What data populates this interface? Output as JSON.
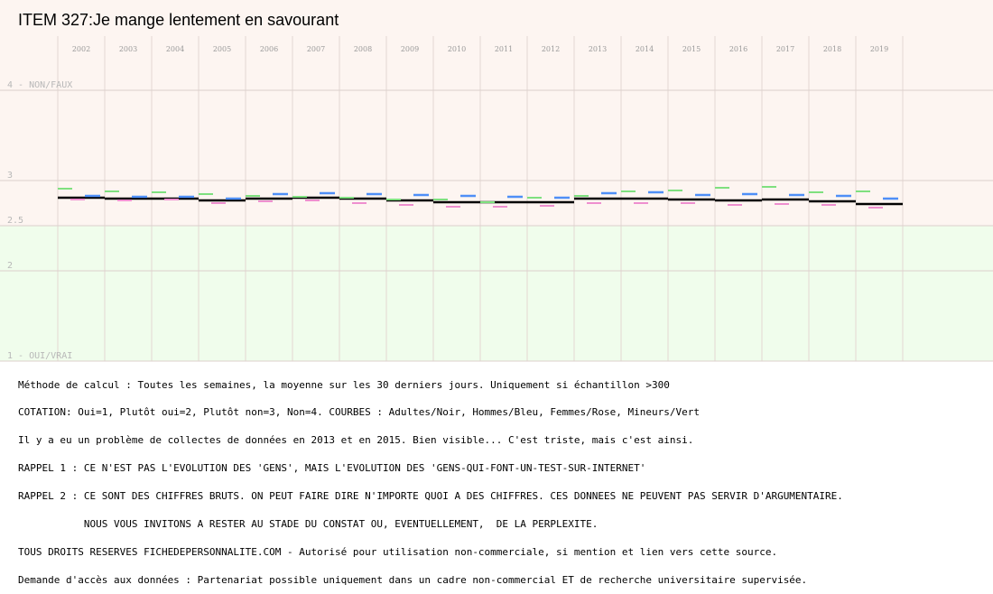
{
  "title": "ITEM 327:Je mange lentement en savourant",
  "chart_data": {
    "type": "line",
    "categories": [
      "2002",
      "2003",
      "2004",
      "2005",
      "2006",
      "2007",
      "2008",
      "2009",
      "2010",
      "2011",
      "2012",
      "2013",
      "2014",
      "2015",
      "2016",
      "2017",
      "2018",
      "2019"
    ],
    "ylim": [
      1,
      4
    ],
    "y_tick_labels": [
      {
        "value": 4,
        "label": "4 - NON/FAUX"
      },
      {
        "value": 3,
        "label": "3"
      },
      {
        "value": 2.5,
        "label": "2.5"
      },
      {
        "value": 2,
        "label": "2"
      },
      {
        "value": 1,
        "label": "1 - OUI/VRAI"
      }
    ],
    "grid": true,
    "series": [
      {
        "name": "Adultes",
        "color": "#000000",
        "values": [
          2.81,
          2.8,
          2.8,
          2.78,
          2.8,
          2.81,
          2.8,
          2.78,
          2.76,
          2.76,
          2.76,
          2.8,
          2.8,
          2.79,
          2.78,
          2.79,
          2.77,
          2.74
        ]
      },
      {
        "name": "Hommes",
        "color": "#4f8ff7",
        "values": [
          2.83,
          2.82,
          2.82,
          2.8,
          2.85,
          2.86,
          2.85,
          2.84,
          2.83,
          2.82,
          2.81,
          2.86,
          2.87,
          2.84,
          2.85,
          2.84,
          2.83,
          2.8
        ]
      },
      {
        "name": "Femmes",
        "color": "#ee8fcf",
        "values": [
          2.79,
          2.78,
          2.79,
          2.75,
          2.77,
          2.78,
          2.75,
          2.73,
          2.71,
          2.71,
          2.72,
          2.75,
          2.75,
          2.75,
          2.73,
          2.74,
          2.73,
          2.7
        ]
      },
      {
        "name": "Mineurs",
        "color": "#7fe07f",
        "values": [
          2.91,
          2.88,
          2.87,
          2.85,
          2.83,
          2.82,
          2.81,
          2.79,
          2.79,
          2.76,
          2.81,
          2.83,
          2.88,
          2.89,
          2.92,
          2.93,
          2.87,
          2.88
        ]
      }
    ]
  },
  "notes": [
    "Méthode de calcul : Toutes les semaines, la moyenne sur les 30 derniers jours. Uniquement si échantillon >300",
    "COTATION: Oui=1, Plutôt oui=2, Plutôt non=3, Non=4. COURBES : Adultes/Noir, Hommes/Bleu, Femmes/Rose, Mineurs/Vert",
    "Il y a eu un problème de collectes de données en 2013 et en 2015. Bien visible... C'est triste, mais c'est ainsi.",
    "RAPPEL 1 : CE N'EST PAS L'EVOLUTION DES 'GENS', MAIS L'EVOLUTION DES 'GENS-QUI-FONT-UN-TEST-SUR-INTERNET'",
    "RAPPEL 2 : CE SONT DES CHIFFRES BRUTS. ON PEUT FAIRE DIRE N'IMPORTE QUOI A DES CHIFFRES. CES DONNEES NE PEUVENT PAS SERVIR D'ARGUMENTAIRE.",
    "           NOUS VOUS INVITONS A RESTER AU STADE DU CONSTAT OU, EVENTUELLEMENT,  DE LA PERPLEXITE.",
    "TOUS DROITS RESERVES FICHEDEPERSONNALITE.COM - Autorisé pour utilisation non-commerciale, si mention et lien vers cette source.",
    "Demande d'accès aux données : Partenariat possible uniquement dans un cadre non-commercial ET de recherche universitaire supervisée."
  ]
}
